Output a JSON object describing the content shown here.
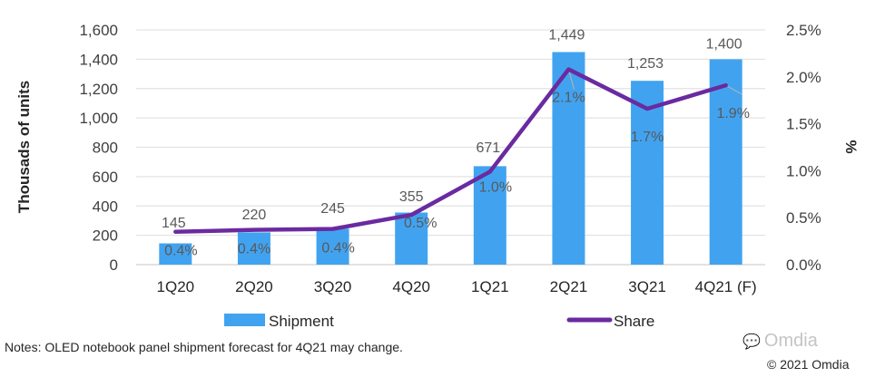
{
  "chart_data": {
    "type": "bar+line",
    "title": "",
    "categories": [
      "1Q20",
      "2Q20",
      "3Q20",
      "4Q20",
      "1Q21",
      "2Q21",
      "3Q21",
      "4Q21 (F)"
    ],
    "series": [
      {
        "name": "Shipment",
        "type": "bar",
        "axis": "left",
        "color": "#41a3f0",
        "values": [
          145,
          220,
          245,
          355,
          671,
          1449,
          1253,
          1400
        ],
        "labels": [
          "145",
          "220",
          "245",
          "355",
          "671",
          "1,449",
          "1,253",
          "1,400"
        ]
      },
      {
        "name": "Share",
        "type": "line",
        "axis": "right",
        "color": "#6a2aa0",
        "values": [
          0.35,
          0.37,
          0.38,
          0.53,
          0.99,
          2.08,
          1.66,
          1.91
        ],
        "labels": [
          "0.4%",
          "0.4%",
          "0.4%",
          "0.5%",
          "1.0%",
          "2.1%",
          "1.7%",
          "1.9%"
        ]
      }
    ],
    "ylabel": "Thousads of units",
    "ylim": [
      0,
      1600
    ],
    "yticks": [
      0,
      200,
      400,
      600,
      800,
      1000,
      1200,
      1400,
      1600
    ],
    "ytick_labels": [
      "0",
      "200",
      "400",
      "600",
      "800",
      "1,000",
      "1,200",
      "1,400",
      "1,600"
    ],
    "y2label": "%",
    "y2lim": [
      0,
      2.5
    ],
    "y2ticks": [
      0,
      0.5,
      1.0,
      1.5,
      2.0,
      2.5
    ],
    "y2tick_labels": [
      "0.0%",
      "0.5%",
      "1.0%",
      "1.5%",
      "2.0%",
      "2.5%"
    ],
    "grid": true,
    "legend": {
      "placement": "bottom",
      "entries": [
        "Shipment",
        "Share"
      ]
    }
  },
  "footer": {
    "note": "Notes: OLED notebook panel shipment forecast for 4Q21 may change.",
    "watermark": "Omdia",
    "copyright": "© 2021 Omdia"
  }
}
